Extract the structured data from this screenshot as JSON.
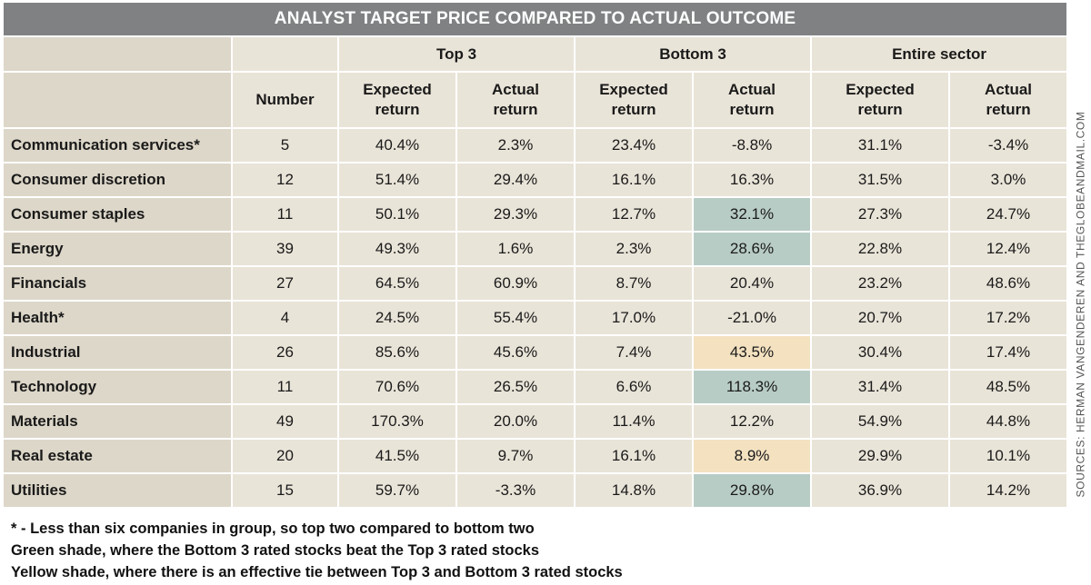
{
  "chart_data": {
    "type": "table",
    "title": "ANALYST TARGET PRICE COMPARED TO ACTUAL OUTCOME",
    "group_headers": [
      "Top 3",
      "Bottom 3",
      "Entire sector"
    ],
    "sub_headers": [
      "Number",
      "Expected return",
      "Actual return",
      "Expected return",
      "Actual return",
      "Expected return",
      "Actual return"
    ],
    "rows": [
      {
        "label": "Communication services*",
        "values": [
          "5",
          "40.4%",
          "2.3%",
          "23.4%",
          "-8.8%",
          "31.1%",
          "-3.4%"
        ],
        "highlight": ""
      },
      {
        "label": "Consumer discretion",
        "values": [
          "12",
          "51.4%",
          "29.4%",
          "16.1%",
          "16.3%",
          "31.5%",
          "3.0%"
        ],
        "highlight": ""
      },
      {
        "label": "Consumer staples",
        "values": [
          "11",
          "50.1%",
          "29.3%",
          "12.7%",
          "32.1%",
          "27.3%",
          "24.7%"
        ],
        "highlight": "green"
      },
      {
        "label": "Energy",
        "values": [
          "39",
          "49.3%",
          "1.6%",
          "2.3%",
          "28.6%",
          "22.8%",
          "12.4%"
        ],
        "highlight": "green"
      },
      {
        "label": "Financials",
        "values": [
          "27",
          "64.5%",
          "60.9%",
          "8.7%",
          "20.4%",
          "23.2%",
          "48.6%"
        ],
        "highlight": ""
      },
      {
        "label": "Health*",
        "values": [
          "4",
          "24.5%",
          "55.4%",
          "17.0%",
          "-21.0%",
          "20.7%",
          "17.2%"
        ],
        "highlight": ""
      },
      {
        "label": "Industrial",
        "values": [
          "26",
          "85.6%",
          "45.6%",
          "7.4%",
          "43.5%",
          "30.4%",
          "17.4%"
        ],
        "highlight": "yellow"
      },
      {
        "label": "Technology",
        "values": [
          "11",
          "70.6%",
          "26.5%",
          "6.6%",
          "118.3%",
          "31.4%",
          "48.5%"
        ],
        "highlight": "green"
      },
      {
        "label": "Materials",
        "values": [
          "49",
          "170.3%",
          "20.0%",
          "11.4%",
          "12.2%",
          "54.9%",
          "44.8%"
        ],
        "highlight": ""
      },
      {
        "label": "Real estate",
        "values": [
          "20",
          "41.5%",
          "9.7%",
          "16.1%",
          "8.9%",
          "29.9%",
          "10.1%"
        ],
        "highlight": "yellow"
      },
      {
        "label": "Utilities",
        "values": [
          "15",
          "59.7%",
          "-3.3%",
          "14.8%",
          "29.8%",
          "36.9%",
          "14.2%"
        ],
        "highlight": "green"
      }
    ],
    "highlight_colors": {
      "green": "#b8ccc6",
      "yellow": "#f3e1c0"
    }
  },
  "notes": [
    "* - Less than six companies in group, so top two compared to bottom two",
    "Green shade, where the Bottom 3 rated stocks beat the Top 3 rated stocks",
    "Yellow shade, where there is an effective tie between Top 3 and Bottom 3 rated stocks"
  ],
  "source": "SOURCES: HERMAN VANGENDEREN AND THEGLOBEANDMAIL.COM"
}
